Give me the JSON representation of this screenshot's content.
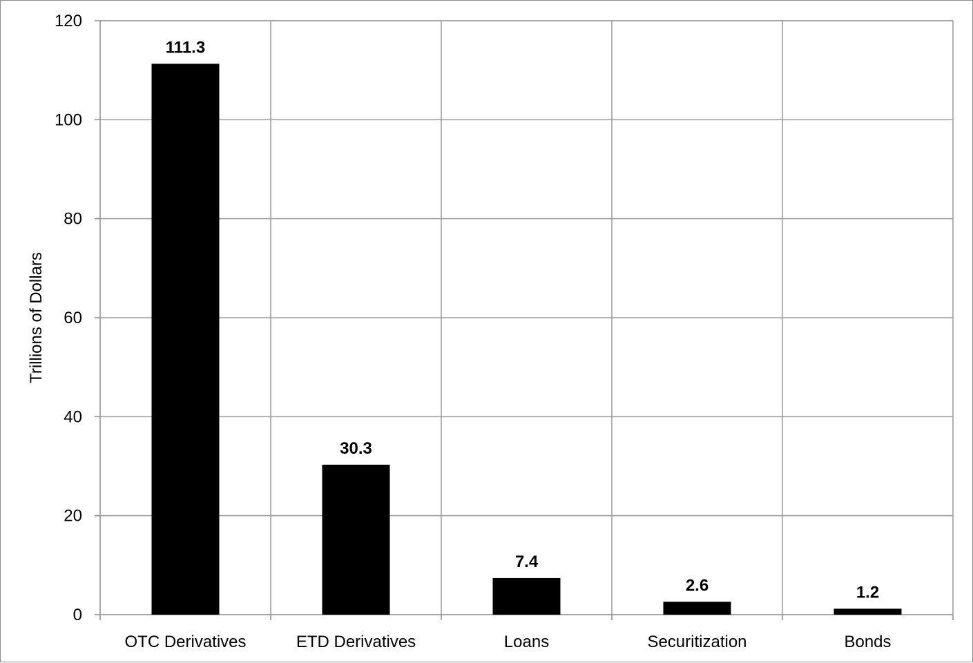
{
  "chart_data": {
    "type": "bar",
    "title": "",
    "xlabel": "",
    "ylabel": "Trillions of Dollars",
    "categories": [
      "OTC Derivatives",
      "ETD Derivatives",
      "Loans",
      "Securitization",
      "Bonds"
    ],
    "values": [
      111.3,
      30.3,
      7.4,
      2.6,
      1.2
    ],
    "data_labels": [
      "111.3",
      "30.3",
      "7.4",
      "2.6",
      "1.2"
    ],
    "y_ticks": [
      0,
      20,
      40,
      60,
      80,
      100,
      120
    ],
    "ylim": [
      0,
      120
    ],
    "grid": true,
    "legend": "none",
    "colors": {
      "bar": "#000000",
      "grid": "#9a9a9a",
      "axis": "#8c8c8c",
      "text": "#000000"
    }
  }
}
